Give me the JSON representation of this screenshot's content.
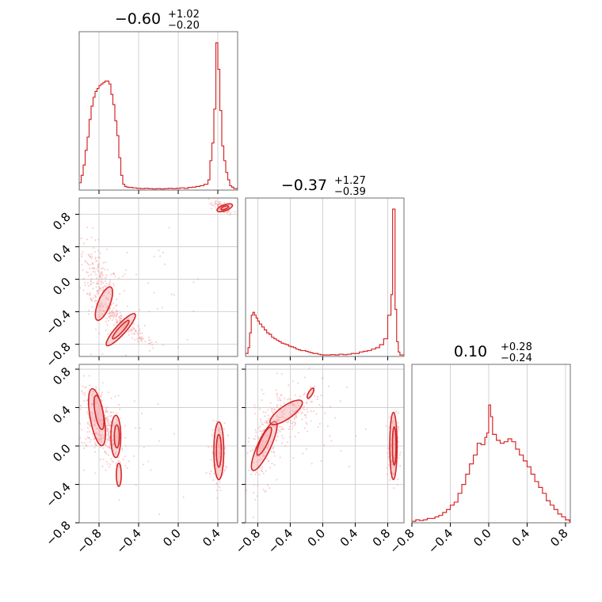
{
  "chart_data": {
    "type": "corner",
    "colors": {
      "main": "#d62728",
      "fill": "#f4a9ab",
      "scatter": "#f2a3a6",
      "grid": "#c8c8c8"
    },
    "parameters": [
      {
        "index": 0,
        "title": {
          "median": "−0.60",
          "plus": "+1.02",
          "minus": "−0.20"
        },
        "range": [
          -1.0,
          0.6
        ]
      },
      {
        "index": 1,
        "title": {
          "median": "−0.37",
          "plus": "+1.27",
          "minus": "−0.39"
        },
        "range": [
          -0.95,
          1.0
        ]
      },
      {
        "index": 2,
        "title": {
          "median": "0.10",
          "plus": "+0.28",
          "minus": "−0.24"
        },
        "range": [
          -0.8,
          0.85
        ]
      }
    ],
    "ticks": [
      {
        "values": [
          -0.8,
          -0.4,
          0.0,
          0.4
        ],
        "labels": [
          "−0.8",
          "−0.4",
          "0.0",
          "0.4"
        ]
      },
      {
        "values": [
          -0.8,
          -0.4,
          0.0,
          0.4,
          0.8
        ],
        "labels": [
          "−0.8",
          "−0.4",
          "0.0",
          "0.4",
          "0.8"
        ]
      },
      {
        "values": [
          -0.8,
          -0.4,
          0.0,
          0.4,
          0.8
        ],
        "labels": [
          "−0.8",
          "−0.4",
          "0.0",
          "0.4",
          "0.8"
        ]
      }
    ],
    "hist_0": [
      [
        -1.0,
        0.05
      ],
      [
        -0.98,
        0.1
      ],
      [
        -0.96,
        0.17
      ],
      [
        -0.94,
        0.27
      ],
      [
        -0.92,
        0.36
      ],
      [
        -0.9,
        0.48
      ],
      [
        -0.88,
        0.57
      ],
      [
        -0.86,
        0.63
      ],
      [
        -0.84,
        0.67
      ],
      [
        -0.82,
        0.69
      ],
      [
        -0.8,
        0.71
      ],
      [
        -0.78,
        0.72
      ],
      [
        -0.76,
        0.73
      ],
      [
        -0.74,
        0.74
      ],
      [
        -0.72,
        0.74
      ],
      [
        -0.7,
        0.72
      ],
      [
        -0.68,
        0.65
      ],
      [
        -0.66,
        0.58
      ],
      [
        -0.64,
        0.47
      ],
      [
        -0.62,
        0.37
      ],
      [
        -0.6,
        0.22
      ],
      [
        -0.58,
        0.1
      ],
      [
        -0.56,
        0.04
      ],
      [
        -0.54,
        0.025
      ],
      [
        -0.52,
        0.02
      ],
      [
        -0.5,
        0.018
      ],
      [
        -0.46,
        0.015
      ],
      [
        -0.42,
        0.012
      ],
      [
        -0.38,
        0.01
      ],
      [
        -0.34,
        0.012
      ],
      [
        -0.3,
        0.01
      ],
      [
        -0.26,
        0.008
      ],
      [
        -0.22,
        0.01
      ],
      [
        -0.18,
        0.008
      ],
      [
        -0.14,
        0.01
      ],
      [
        -0.1,
        0.012
      ],
      [
        -0.06,
        0.01
      ],
      [
        -0.02,
        0.012
      ],
      [
        0.02,
        0.015
      ],
      [
        0.06,
        0.012
      ],
      [
        0.1,
        0.018
      ],
      [
        0.14,
        0.02
      ],
      [
        0.18,
        0.025
      ],
      [
        0.22,
        0.03
      ],
      [
        0.26,
        0.04
      ],
      [
        0.3,
        0.07
      ],
      [
        0.32,
        0.2
      ],
      [
        0.34,
        0.32
      ],
      [
        0.36,
        0.55
      ],
      [
        0.38,
        1.0
      ],
      [
        0.4,
        0.82
      ],
      [
        0.42,
        0.54
      ],
      [
        0.44,
        0.3
      ],
      [
        0.46,
        0.2
      ],
      [
        0.48,
        0.12
      ],
      [
        0.5,
        0.07
      ],
      [
        0.52,
        0.03
      ],
      [
        0.54,
        0.02
      ],
      [
        0.56,
        0.01
      ]
    ],
    "hist_1": [
      [
        -0.95,
        0.02
      ],
      [
        -0.92,
        0.06
      ],
      [
        -0.9,
        0.16
      ],
      [
        -0.88,
        0.28
      ],
      [
        -0.86,
        0.3
      ],
      [
        -0.84,
        0.28
      ],
      [
        -0.82,
        0.26
      ],
      [
        -0.8,
        0.24
      ],
      [
        -0.78,
        0.22
      ],
      [
        -0.75,
        0.2
      ],
      [
        -0.72,
        0.18
      ],
      [
        -0.69,
        0.16
      ],
      [
        -0.66,
        0.15
      ],
      [
        -0.63,
        0.13
      ],
      [
        -0.6,
        0.12
      ],
      [
        -0.57,
        0.11
      ],
      [
        -0.54,
        0.1
      ],
      [
        -0.51,
        0.09
      ],
      [
        -0.48,
        0.085
      ],
      [
        -0.45,
        0.08
      ],
      [
        -0.42,
        0.07
      ],
      [
        -0.39,
        0.065
      ],
      [
        -0.36,
        0.06
      ],
      [
        -0.33,
        0.05
      ],
      [
        -0.3,
        0.045
      ],
      [
        -0.27,
        0.04
      ],
      [
        -0.24,
        0.04
      ],
      [
        -0.21,
        0.035
      ],
      [
        -0.18,
        0.03
      ],
      [
        -0.15,
        0.025
      ],
      [
        -0.12,
        0.02
      ],
      [
        -0.09,
        0.02
      ],
      [
        -0.06,
        0.015
      ],
      [
        -0.03,
        0.012
      ],
      [
        0.0,
        0.01
      ],
      [
        0.05,
        0.01
      ],
      [
        0.1,
        0.012
      ],
      [
        0.15,
        0.01
      ],
      [
        0.2,
        0.015
      ],
      [
        0.25,
        0.012
      ],
      [
        0.3,
        0.015
      ],
      [
        0.35,
        0.02
      ],
      [
        0.4,
        0.02
      ],
      [
        0.45,
        0.03
      ],
      [
        0.5,
        0.035
      ],
      [
        0.55,
        0.04
      ],
      [
        0.6,
        0.05
      ],
      [
        0.65,
        0.06
      ],
      [
        0.7,
        0.08
      ],
      [
        0.75,
        0.12
      ],
      [
        0.8,
        0.28
      ],
      [
        0.84,
        0.42
      ],
      [
        0.86,
        1.0
      ],
      [
        0.89,
        0.32
      ],
      [
        0.91,
        0.1
      ],
      [
        0.93,
        0.03
      ],
      [
        0.95,
        0.01
      ]
    ],
    "hist_2": [
      [
        -0.8,
        0.01
      ],
      [
        -0.76,
        0.02
      ],
      [
        -0.72,
        0.015
      ],
      [
        -0.68,
        0.02
      ],
      [
        -0.64,
        0.03
      ],
      [
        -0.6,
        0.03
      ],
      [
        -0.56,
        0.04
      ],
      [
        -0.52,
        0.05
      ],
      [
        -0.48,
        0.07
      ],
      [
        -0.44,
        0.09
      ],
      [
        -0.4,
        0.12
      ],
      [
        -0.36,
        0.14
      ],
      [
        -0.32,
        0.2
      ],
      [
        -0.28,
        0.26
      ],
      [
        -0.24,
        0.33
      ],
      [
        -0.2,
        0.4
      ],
      [
        -0.16,
        0.46
      ],
      [
        -0.12,
        0.54
      ],
      [
        -0.08,
        0.53
      ],
      [
        -0.04,
        0.58
      ],
      [
        -0.02,
        0.61
      ],
      [
        0.0,
        0.8
      ],
      [
        0.02,
        0.72
      ],
      [
        0.04,
        0.6
      ],
      [
        0.08,
        0.56
      ],
      [
        0.12,
        0.54
      ],
      [
        0.16,
        0.55
      ],
      [
        0.2,
        0.57
      ],
      [
        0.24,
        0.55
      ],
      [
        0.28,
        0.5
      ],
      [
        0.32,
        0.46
      ],
      [
        0.36,
        0.42
      ],
      [
        0.4,
        0.38
      ],
      [
        0.44,
        0.33
      ],
      [
        0.48,
        0.28
      ],
      [
        0.52,
        0.24
      ],
      [
        0.56,
        0.2
      ],
      [
        0.6,
        0.15
      ],
      [
        0.64,
        0.12
      ],
      [
        0.68,
        0.09
      ],
      [
        0.72,
        0.06
      ],
      [
        0.76,
        0.04
      ],
      [
        0.8,
        0.02
      ],
      [
        0.84,
        0.01
      ]
    ],
    "clusters_10": [
      {
        "cx": -0.8,
        "cy": -0.05,
        "sx": 0.1,
        "sy": 0.28,
        "rho": -0.55,
        "n": 220
      },
      {
        "cx": -0.55,
        "cy": -0.55,
        "sx": 0.16,
        "sy": 0.16,
        "rho": -0.95,
        "n": 180
      },
      {
        "cx": 0.45,
        "cy": 0.88,
        "sx": 0.05,
        "sy": 0.04,
        "rho": -0.7,
        "n": 90
      },
      {
        "cx": -0.3,
        "cy": -0.2,
        "sx": 0.35,
        "sy": 0.35,
        "rho": 0.0,
        "n": 40
      }
    ],
    "clusters_20": [
      {
        "cx": -0.82,
        "cy": 0.25,
        "sx": 0.09,
        "sy": 0.2,
        "rho": -0.3,
        "n": 260
      },
      {
        "cx": -0.67,
        "cy": 0.08,
        "sx": 0.06,
        "sy": 0.16,
        "rho": -0.4,
        "n": 120
      },
      {
        "cx": 0.41,
        "cy": -0.07,
        "sx": 0.035,
        "sy": 0.15,
        "rho": 0.0,
        "n": 140
      },
      {
        "cx": -0.4,
        "cy": 0.0,
        "sx": 0.4,
        "sy": 0.35,
        "rho": 0.0,
        "n": 40
      }
    ],
    "clusters_21": [
      {
        "cx": -0.7,
        "cy": 0.05,
        "sx": 0.12,
        "sy": 0.25,
        "rho": 0.5,
        "n": 200
      },
      {
        "cx": -0.35,
        "cy": 0.35,
        "sx": 0.15,
        "sy": 0.12,
        "rho": 0.3,
        "n": 120
      },
      {
        "cx": 0.87,
        "cy": -0.02,
        "sx": 0.03,
        "sy": 0.18,
        "rho": 0.0,
        "n": 150
      },
      {
        "cx": -0.2,
        "cy": 0.2,
        "sx": 0.35,
        "sy": 0.3,
        "rho": 0.0,
        "n": 40
      }
    ],
    "contours_10": [
      {
        "cx": -0.75,
        "cy": -0.3,
        "rx": 0.06,
        "ry": 0.22,
        "rot": 22
      },
      {
        "cx": -0.58,
        "cy": -0.62,
        "rx": 0.05,
        "ry": 0.26,
        "rot": 42
      },
      {
        "cx": -0.58,
        "cy": -0.62,
        "rx": 0.025,
        "ry": 0.15,
        "rot": 42
      },
      {
        "cx": 0.47,
        "cy": 0.88,
        "rx": 0.03,
        "ry": 0.1,
        "rot": 70
      },
      {
        "cx": 0.47,
        "cy": 0.88,
        "rx": 0.015,
        "ry": 0.05,
        "rot": 70
      }
    ],
    "contours_20": [
      {
        "cx": -0.82,
        "cy": 0.3,
        "rx": 0.07,
        "ry": 0.3,
        "rot": -10
      },
      {
        "cx": -0.8,
        "cy": 0.35,
        "rx": 0.04,
        "ry": 0.18,
        "rot": -10
      },
      {
        "cx": -0.63,
        "cy": 0.1,
        "rx": 0.05,
        "ry": 0.22,
        "rot": 0
      },
      {
        "cx": -0.62,
        "cy": 0.1,
        "rx": 0.025,
        "ry": 0.12,
        "rot": 0
      },
      {
        "cx": -0.6,
        "cy": -0.3,
        "rx": 0.025,
        "ry": 0.12,
        "rot": 0
      },
      {
        "cx": 0.41,
        "cy": -0.05,
        "rx": 0.05,
        "ry": 0.3,
        "rot": 0
      },
      {
        "cx": 0.41,
        "cy": -0.05,
        "rx": 0.025,
        "ry": 0.17,
        "rot": 0
      }
    ],
    "contours_21": [
      {
        "cx": -0.72,
        "cy": 0.0,
        "rx": 0.08,
        "ry": 0.28,
        "rot": 25
      },
      {
        "cx": -0.72,
        "cy": 0.05,
        "rx": 0.045,
        "ry": 0.16,
        "rot": 25
      },
      {
        "cx": -0.45,
        "cy": 0.35,
        "rx": 0.08,
        "ry": 0.2,
        "rot": 55
      },
      {
        "cx": -0.15,
        "cy": 0.55,
        "rx": 0.025,
        "ry": 0.06,
        "rot": 30
      },
      {
        "cx": 0.87,
        "cy": 0.0,
        "rx": 0.045,
        "ry": 0.35,
        "rot": 0
      },
      {
        "cx": 0.88,
        "cy": 0.0,
        "rx": 0.022,
        "ry": 0.2,
        "rot": 0
      }
    ]
  }
}
